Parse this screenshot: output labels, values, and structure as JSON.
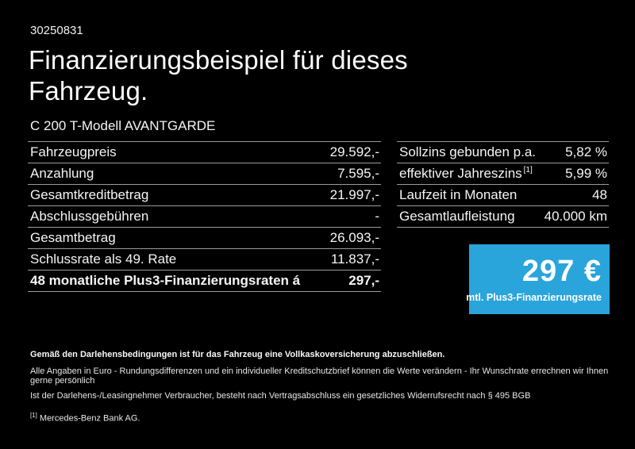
{
  "page": {
    "vehicle_id": "30250831",
    "title": "Finanzierungsbeispiel für dieses\nFahrzeug.",
    "subtitle": "C 200 T-Modell AVANTGARDE"
  },
  "left_table": {
    "rows": [
      {
        "label": "Fahrzeugpreis",
        "value": "29.592,-",
        "bold": false
      },
      {
        "label": "Anzahlung",
        "value": "7.595,-",
        "bold": false
      },
      {
        "label": "Gesamtkreditbetrag",
        "value": "21.997,-",
        "bold": false
      },
      {
        "label": "Abschlussgebühren",
        "value": "-",
        "bold": false
      },
      {
        "label": "Gesamtbetrag",
        "value": "26.093,-",
        "bold": false
      },
      {
        "label": "Schlussrate als 49. Rate",
        "value": "11.837,-",
        "bold": false
      },
      {
        "label": "48 monatliche Plus3-Finanzierungsraten á",
        "value": "297,-",
        "bold": true
      }
    ]
  },
  "right_table": {
    "rows": [
      {
        "label": "Sollzins gebunden p.a.",
        "value": "5,82 %",
        "bold": false
      },
      {
        "label": "effektiver Jahreszins",
        "label_sup": "[1]",
        "value": "5,99 %",
        "bold": false
      },
      {
        "label": "Laufzeit in Monaten",
        "value": "48",
        "bold": false
      },
      {
        "label": "Gesamtlaufleistung",
        "value": "40.000 km",
        "bold": false
      }
    ]
  },
  "price_box": {
    "amount": "297 €",
    "caption": "mtl. Plus3-Finanzierungsrate",
    "background_color": "#29a5dc"
  },
  "footer": {
    "bold_note": "Gemäß den Darlehensbedingungen ist für das Fahrzeug eine Vollkaskoversicherung abzuschließen.",
    "note1": "Alle Angaben in Euro - Rundungsdifferenzen und ein individueller Kreditschutzbrief können die Werte verändern - Ihr Wunschrate errechnen wir Ihnen gerne persönlich",
    "note2": "Ist der Darlehens-/Leasingnehmer Verbraucher, besteht nach Vertragsabschluss ein gesetzliches Widerrufsrecht nach § 495 BGB",
    "footnote_marker": "[1]",
    "footnote_text": "Mercedes-Benz Bank AG."
  }
}
